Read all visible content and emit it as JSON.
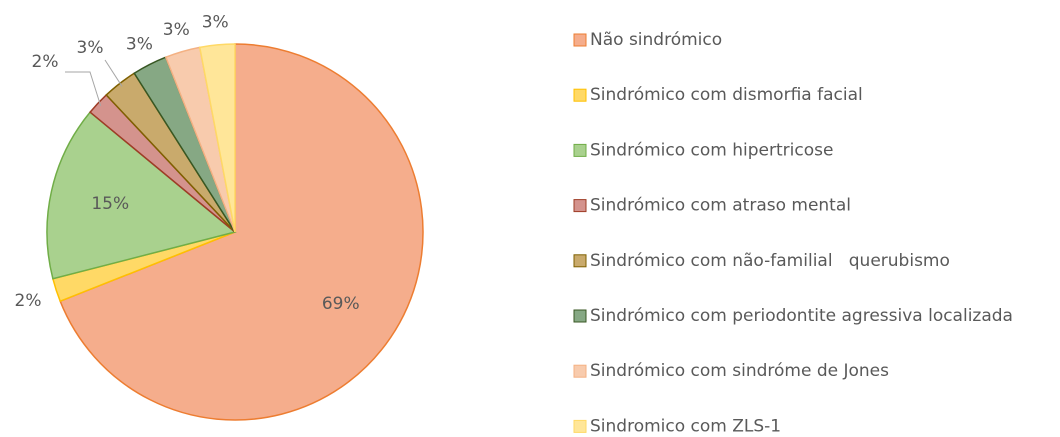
{
  "chart_data": {
    "type": "pie",
    "categories": [
      "Não sindrómico",
      "Sindrómico com dismorfia facial",
      "Sindrómico com hipertricose",
      "Sindrómico com atraso mental",
      "Sindrómico com não-familial   querubismo",
      "Sindrómico com periodontite agressiva localizada",
      "Sindrómico com sindróme de Jones",
      "Sindromico com ZLS-1"
    ],
    "values": [
      69,
      2,
      15,
      2,
      3,
      3,
      3,
      3
    ],
    "value_labels": [
      "69%",
      "2%",
      "15%",
      "2%",
      "3%",
      "3%",
      "3%",
      "3%"
    ],
    "colors": [
      "#f5ad8c",
      "#ffd966",
      "#a9d18e",
      "#d4938d",
      "#c9aa6c",
      "#86a884",
      "#f8cbad",
      "#ffe699"
    ],
    "legend": "right"
  }
}
